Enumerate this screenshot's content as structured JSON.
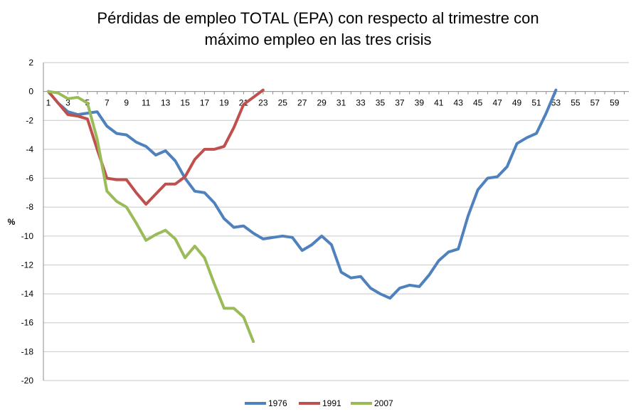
{
  "chart_data": {
    "type": "line",
    "title": [
      "Pérdidas de empleo TOTAL (EPA) con respecto al trimestre con",
      "máximo empleo en las tres crisis"
    ],
    "xlabel": "",
    "ylabel": "%",
    "xlim": [
      1,
      60
    ],
    "ylim": [
      -20,
      2
    ],
    "y_ticks": [
      2,
      0,
      -2,
      -4,
      -6,
      -8,
      -10,
      -12,
      -14,
      -16,
      -18,
      -20
    ],
    "x_ticks": [
      1,
      3,
      5,
      7,
      9,
      11,
      13,
      15,
      17,
      19,
      21,
      23,
      25,
      27,
      29,
      31,
      33,
      35,
      37,
      39,
      41,
      43,
      45,
      47,
      49,
      51,
      53,
      55,
      57,
      59
    ],
    "grid": true,
    "legend": "bottom",
    "series": [
      {
        "name": "1976",
        "color": "#4f81bd",
        "values": [
          0,
          -0.8,
          -1.4,
          -1.6,
          -1.5,
          -1.4,
          -2.4,
          -2.9,
          -3.0,
          -3.5,
          -3.8,
          -4.4,
          -4.1,
          -4.8,
          -6.0,
          -6.9,
          -7.0,
          -7.7,
          -8.8,
          -9.4,
          -9.3,
          -9.8,
          -10.2,
          -10.1,
          -10.0,
          -10.1,
          -11.0,
          -10.6,
          -10.0,
          -10.6,
          -12.5,
          -12.9,
          -12.8,
          -13.6,
          -14.0,
          -14.3,
          -13.6,
          -13.4,
          -13.5,
          -12.7,
          -11.7,
          -11.1,
          -10.9,
          -8.6,
          -6.8,
          -6.0,
          -5.9,
          -5.2,
          -3.6,
          -3.2,
          -2.9,
          -1.5,
          0.1
        ]
      },
      {
        "name": "1991",
        "color": "#c0504d",
        "values": [
          0,
          -0.8,
          -1.6,
          -1.7,
          -1.9,
          -4.0,
          -6.0,
          -6.1,
          -6.1,
          -7.0,
          -7.8,
          -7.1,
          -6.4,
          -6.4,
          -5.9,
          -4.7,
          -4.0,
          -4.0,
          -3.8,
          -2.5,
          -0.9,
          -0.4,
          0.1
        ]
      },
      {
        "name": "2007",
        "color": "#9bbb59",
        "values": [
          0,
          -0.1,
          -0.5,
          -0.4,
          -0.8,
          -3.3,
          -6.9,
          -7.6,
          -8.0,
          -9.1,
          -10.3,
          -9.9,
          -9.6,
          -10.2,
          -11.5,
          -10.7,
          -11.5,
          -13.3,
          -15.0,
          -15.0,
          -15.6,
          -17.3
        ]
      }
    ]
  }
}
